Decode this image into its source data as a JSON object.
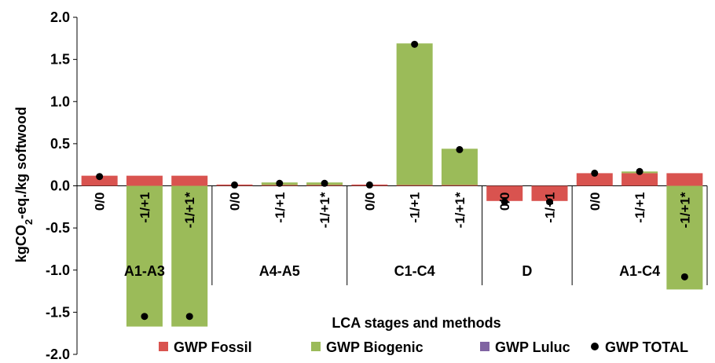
{
  "chart_data": {
    "type": "bar",
    "xlabel": "LCA stages and methods",
    "ylabel_parts": [
      "kgCO",
      "2",
      "-eq./kg  softwood"
    ],
    "ylim": [
      -2.0,
      2.0
    ],
    "yticks": [
      "2.0",
      "1.5",
      "1.0",
      "0.5",
      "0.0",
      "-0.5",
      "-1.0",
      "-1.5",
      "-2.0"
    ],
    "ytick_values": [
      2.0,
      1.5,
      1.0,
      0.5,
      0.0,
      -0.5,
      -1.0,
      -1.5,
      -2.0
    ],
    "groups": [
      {
        "label": "A1-A3",
        "categories": [
          "0/0",
          "-1/+1",
          "-1/+1*"
        ]
      },
      {
        "label": "A4-A5",
        "categories": [
          "0/0",
          "-1/+1",
          "-1/+1*"
        ]
      },
      {
        "label": "C1-C4",
        "categories": [
          "0/0",
          "-1/+1",
          "-1/+1*"
        ]
      },
      {
        "label": "D",
        "categories": [
          "0/0",
          "-1/+1"
        ]
      },
      {
        "label": "A1-C4",
        "categories": [
          "0/0",
          "-1/+1",
          "-1/+1*"
        ]
      }
    ],
    "series": [
      {
        "name": "GWP Fossil",
        "color": "#d9534f",
        "values": [
          0.12,
          0.12,
          0.12,
          0.015,
          0.01,
          0.01,
          0.015,
          0.01,
          0.01,
          -0.18,
          -0.18,
          0.15,
          0.15,
          0.15
        ]
      },
      {
        "name": "GWP Biogenic",
        "color": "#9bbb59",
        "values": [
          0.0,
          -1.67,
          -1.67,
          0.0,
          0.03,
          0.03,
          0.0,
          1.68,
          0.43,
          0.0,
          0.0,
          0.0,
          0.02,
          -1.23
        ]
      },
      {
        "name": "GWP Luluc",
        "color": "#8064a2",
        "values": [
          0,
          0,
          0,
          0,
          0,
          0,
          0,
          0,
          0,
          0,
          0,
          0,
          0,
          0
        ]
      }
    ],
    "total": {
      "name": "GWP TOTAL",
      "color": "#000000",
      "values": [
        0.11,
        -1.55,
        -1.55,
        0.01,
        0.03,
        0.03,
        0.01,
        1.68,
        0.43,
        -0.19,
        -0.19,
        0.15,
        0.17,
        -1.08
      ]
    },
    "legend_position": "bottom-right"
  }
}
